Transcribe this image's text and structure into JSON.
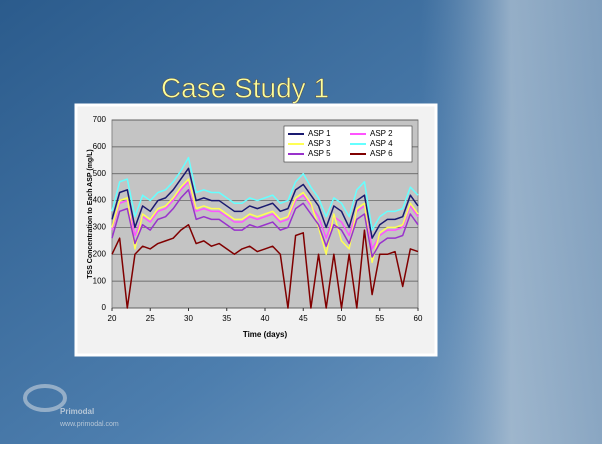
{
  "slide": {
    "title": "Case Study 1",
    "logo": {
      "name": "Primodal",
      "url": "www.primodal.com"
    }
  },
  "chart_data": {
    "type": "line",
    "xlabel": "Time (days)",
    "ylabel": "TSS Concentration to Each ASP (mg/L)",
    "x": [
      20,
      21,
      22,
      23,
      24,
      25,
      26,
      27,
      28,
      29,
      30,
      31,
      32,
      33,
      34,
      35,
      36,
      37,
      38,
      39,
      40,
      41,
      42,
      43,
      44,
      45,
      46,
      47,
      48,
      49,
      50,
      51,
      52,
      53,
      54,
      55,
      56,
      57,
      58,
      59,
      60
    ],
    "xlim": [
      20,
      60
    ],
    "xticks": [
      20,
      25,
      30,
      35,
      40,
      45,
      50,
      55,
      60
    ],
    "ylim": [
      0,
      700
    ],
    "yticks": [
      0,
      100,
      200,
      300,
      400,
      500,
      600,
      700
    ],
    "grid": true,
    "legend": "upper right",
    "series": [
      {
        "name": "ASP 1",
        "color": "#1a1a70",
        "values": [
          330,
          430,
          440,
          300,
          380,
          360,
          400,
          410,
          440,
          480,
          520,
          400,
          410,
          400,
          400,
          380,
          360,
          360,
          380,
          370,
          380,
          390,
          360,
          370,
          440,
          460,
          420,
          380,
          300,
          380,
          360,
          300,
          400,
          420,
          260,
          310,
          330,
          330,
          340,
          420,
          380
        ]
      },
      {
        "name": "ASP 2",
        "color": "#ff55ff",
        "values": [
          290,
          390,
          400,
          270,
          340,
          320,
          360,
          370,
          400,
          440,
          470,
          360,
          370,
          360,
          360,
          340,
          320,
          320,
          340,
          330,
          340,
          350,
          320,
          330,
          400,
          420,
          380,
          340,
          260,
          340,
          320,
          270,
          360,
          380,
          220,
          270,
          290,
          290,
          300,
          380,
          340
        ]
      },
      {
        "name": "ASP 3",
        "color": "#ffff55",
        "values": [
          300,
          400,
          410,
          220,
          350,
          330,
          370,
          380,
          410,
          450,
          480,
          370,
          380,
          370,
          370,
          350,
          330,
          330,
          350,
          340,
          350,
          360,
          330,
          340,
          410,
          430,
          390,
          300,
          200,
          350,
          250,
          220,
          370,
          390,
          170,
          280,
          300,
          300,
          310,
          390,
          350
        ]
      },
      {
        "name": "ASP 4",
        "color": "#66ffff",
        "values": [
          360,
          470,
          480,
          340,
          420,
          400,
          430,
          440,
          470,
          510,
          560,
          430,
          440,
          430,
          430,
          410,
          390,
          390,
          410,
          400,
          410,
          420,
          390,
          400,
          470,
          500,
          450,
          410,
          340,
          410,
          390,
          340,
          440,
          470,
          290,
          340,
          360,
          360,
          370,
          450,
          420
        ]
      },
      {
        "name": "ASP 5",
        "color": "#9933cc",
        "values": [
          260,
          360,
          370,
          240,
          310,
          290,
          330,
          340,
          370,
          410,
          440,
          330,
          340,
          330,
          330,
          310,
          290,
          290,
          310,
          300,
          310,
          320,
          290,
          300,
          370,
          390,
          350,
          310,
          230,
          310,
          290,
          240,
          330,
          350,
          190,
          240,
          260,
          260,
          270,
          350,
          310
        ]
      },
      {
        "name": "ASP 6",
        "color": "#800000",
        "values": [
          200,
          260,
          0,
          200,
          230,
          220,
          240,
          250,
          260,
          290,
          310,
          240,
          250,
          230,
          240,
          220,
          200,
          220,
          230,
          210,
          220,
          230,
          200,
          0,
          270,
          280,
          0,
          200,
          0,
          200,
          0,
          200,
          0,
          290,
          50,
          200,
          200,
          210,
          80,
          220,
          210
        ]
      }
    ]
  }
}
